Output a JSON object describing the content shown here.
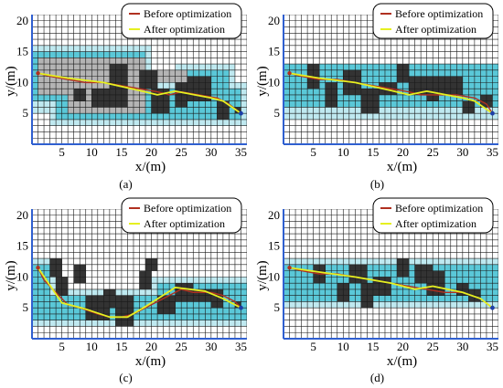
{
  "figure": {
    "legend_before": "Before optimization",
    "legend_after": "After optimization",
    "xlabel": "x/(m)",
    "ylabel": "y/(m)",
    "x_ticks": [
      5,
      10,
      15,
      20,
      25,
      30,
      35
    ],
    "y_ticks": [
      5,
      10,
      15,
      20
    ],
    "xlim": [
      0,
      36
    ],
    "ylim": [
      0,
      21
    ],
    "colors": {
      "grid": "#1a1a1a",
      "axis": "#2f5fd0",
      "obstacle": "#333333",
      "buffer_inner": "#5ac8d8",
      "buffer_outer": "#bfe9f0",
      "explored": "#b4b4b4",
      "before_path": "#b03020",
      "after_path": "#e6f020",
      "endpoint": "#1d3fa8"
    }
  },
  "chart_data": [
    {
      "type": "line",
      "panel_label": "(a)",
      "legend": [
        "Before optimization",
        "After optimization"
      ],
      "xlabel": "x/(m)",
      "ylabel": "y/(m)",
      "xlim": [
        0,
        36
      ],
      "ylim": [
        0,
        21
      ],
      "x_ticks": [
        5,
        10,
        15,
        20,
        25,
        30,
        35
      ],
      "y_ticks": [
        5,
        10,
        15,
        20
      ],
      "grid": true,
      "legend_position": "top-right",
      "obstacles": [
        [
          7,
          7,
          2,
          2
        ],
        [
          10,
          6,
          3,
          3
        ],
        [
          13,
          6,
          3,
          7
        ],
        [
          18,
          9,
          3,
          3
        ],
        [
          20,
          5,
          3,
          4
        ],
        [
          24,
          6,
          2,
          4
        ],
        [
          26,
          7,
          4,
          4
        ],
        [
          31,
          4,
          2,
          3
        ],
        [
          34,
          5,
          1,
          1
        ]
      ],
      "explored_regions": [
        [
          1,
          8,
          18,
          6
        ],
        [
          6,
          5,
          13,
          3
        ],
        [
          19,
          10,
          7,
          2
        ]
      ],
      "buffer": {
        "inner": [
          [
            0,
            7,
            19,
            8
          ],
          [
            4,
            4,
            31,
            5
          ],
          [
            25,
            6,
            8,
            6
          ]
        ],
        "outer": [
          [
            0,
            5,
            20,
            11
          ],
          [
            3,
            3,
            33,
            7
          ],
          [
            24,
            4,
            10,
            9
          ]
        ]
      },
      "series": [
        {
          "name": "Before optimization",
          "x": [
            1,
            3,
            6,
            9,
            12,
            15,
            18,
            21,
            23,
            25,
            28,
            31,
            33,
            35
          ],
          "y": [
            11.5,
            11,
            10.5,
            10,
            10,
            9.5,
            9,
            8.5,
            8,
            8.5,
            8,
            7.5,
            6.5,
            5
          ]
        },
        {
          "name": "After optimization",
          "x": [
            1,
            6,
            12,
            18,
            21,
            24,
            30,
            32,
            35
          ],
          "y": [
            11.5,
            10.7,
            10,
            8.7,
            8,
            8.6,
            7.5,
            7,
            5
          ]
        }
      ]
    },
    {
      "type": "line",
      "panel_label": "(b)",
      "legend": [
        "Before optimization",
        "After optimization"
      ],
      "xlabel": "x/(m)",
      "ylabel": "y/(m)",
      "xlim": [
        0,
        36
      ],
      "ylim": [
        0,
        21
      ],
      "x_ticks": [
        5,
        10,
        15,
        20,
        25,
        30,
        35
      ],
      "y_ticks": [
        5,
        10,
        15,
        20
      ],
      "grid": true,
      "legend_position": "top-right",
      "obstacles": [
        [
          4,
          9,
          2,
          4
        ],
        [
          7,
          6,
          2,
          4
        ],
        [
          10,
          8,
          3,
          4
        ],
        [
          13,
          5,
          3,
          4
        ],
        [
          16,
          8,
          3,
          2
        ],
        [
          19,
          10,
          2,
          3
        ],
        [
          21,
          8,
          3,
          3
        ],
        [
          24,
          7,
          2,
          4
        ],
        [
          26,
          8,
          4,
          3
        ],
        [
          30,
          5,
          2,
          2
        ],
        [
          33,
          6,
          2,
          2
        ]
      ],
      "explored_regions": [],
      "buffer": {
        "inner": [
          [
            0,
            6,
            36,
            7
          ]
        ],
        "outer": [
          [
            0,
            4,
            36,
            9
          ]
        ]
      },
      "series": [
        {
          "name": "Before optimization",
          "x": [
            1,
            3,
            6,
            9,
            12,
            15,
            18,
            21,
            23,
            26,
            29,
            32,
            34,
            35
          ],
          "y": [
            11.5,
            11,
            10.5,
            10.5,
            10,
            9.5,
            9,
            8.5,
            8,
            8,
            8,
            7.5,
            6.5,
            5
          ]
        },
        {
          "name": "After optimization",
          "x": [
            1,
            6,
            12,
            18,
            21,
            24,
            30,
            32,
            35
          ],
          "y": [
            11.5,
            10.7,
            10,
            8.7,
            8,
            8.6,
            7.5,
            7,
            5
          ]
        }
      ]
    },
    {
      "type": "line",
      "panel_label": "(c)",
      "legend": [
        "Before optimization",
        "After optimization"
      ],
      "xlabel": "x/(m)",
      "ylabel": "y/(m)",
      "xlim": [
        0,
        36
      ],
      "ylim": [
        0,
        21
      ],
      "x_ticks": [
        5,
        10,
        15,
        20,
        25,
        30,
        35
      ],
      "y_ticks": [
        5,
        10,
        15,
        20
      ],
      "grid": true,
      "legend_position": "top-right",
      "obstacles": [
        [
          3,
          10,
          2,
          3
        ],
        [
          4,
          7,
          2,
          3
        ],
        [
          7,
          9,
          2,
          3
        ],
        [
          9,
          3,
          4,
          4
        ],
        [
          12,
          5,
          2,
          3
        ],
        [
          14,
          2,
          3,
          5
        ],
        [
          18,
          8,
          2,
          3
        ],
        [
          19,
          11,
          2,
          2
        ],
        [
          21,
          4,
          3,
          3
        ],
        [
          24,
          6,
          3,
          3
        ],
        [
          27,
          6,
          3,
          2
        ],
        [
          30,
          5,
          2,
          3
        ],
        [
          34,
          5,
          1,
          1
        ]
      ],
      "explored_regions": [],
      "buffer": {
        "inner": [
          [
            0,
            3,
            36,
            4
          ],
          [
            0,
            7,
            3,
            5
          ],
          [
            21,
            6,
            15,
            3
          ]
        ],
        "outer": [
          [
            0,
            2,
            36,
            6
          ],
          [
            0,
            6,
            4,
            7
          ],
          [
            20,
            5,
            16,
            5
          ]
        ]
      },
      "series": [
        {
          "name": "Before optimization",
          "x": [
            1,
            2,
            4,
            6,
            8,
            11,
            13,
            15,
            17,
            19,
            21,
            23,
            25,
            27,
            30,
            32,
            34,
            35
          ],
          "y": [
            11.5,
            9.5,
            7.5,
            5.5,
            5,
            4,
            3.5,
            3.5,
            4,
            5,
            6,
            7,
            8,
            7.5,
            7.5,
            7,
            6,
            5
          ]
        },
        {
          "name": "After optimization",
          "x": [
            1,
            5,
            9,
            13,
            16,
            19,
            24,
            29,
            32,
            35
          ],
          "y": [
            11.5,
            5.8,
            4.8,
            3.5,
            3.5,
            5.2,
            8.3,
            7.7,
            6.5,
            5
          ]
        }
      ]
    },
    {
      "type": "line",
      "panel_label": "(d)",
      "legend": [
        "Before optimization",
        "After optimization"
      ],
      "xlabel": "x/(m)",
      "ylabel": "y/(m)",
      "xlim": [
        0,
        36
      ],
      "ylim": [
        0,
        21
      ],
      "x_ticks": [
        5,
        10,
        15,
        20,
        25,
        30,
        35
      ],
      "y_ticks": [
        5,
        10,
        15,
        20
      ],
      "grid": true,
      "legend_position": "top-right",
      "obstacles": [
        [
          5,
          9,
          2,
          3
        ],
        [
          9,
          6,
          2,
          3
        ],
        [
          11,
          9,
          3,
          3
        ],
        [
          13,
          5,
          2,
          4
        ],
        [
          15,
          7,
          3,
          3
        ],
        [
          19,
          10,
          2,
          3
        ],
        [
          22,
          9,
          3,
          3
        ],
        [
          24,
          7,
          3,
          4
        ],
        [
          29,
          7,
          2,
          2
        ],
        [
          31,
          6,
          2,
          2
        ]
      ],
      "explored_regions": [],
      "buffer": {
        "inner": [
          [
            0,
            6,
            36,
            6
          ]
        ],
        "outer": [
          [
            0,
            5,
            36,
            8
          ]
        ]
      },
      "series": [
        {
          "name": "Before optimization",
          "x": [
            1,
            3,
            6,
            9,
            12,
            15,
            18,
            21,
            24,
            27,
            30,
            33,
            35
          ],
          "y": [
            11.5,
            11,
            10.5,
            10.5,
            10,
            9.5,
            9,
            8.5,
            8,
            7.5,
            7.5,
            6.5,
            5
          ]
        },
        {
          "name": "After optimization",
          "x": [
            1,
            6,
            12,
            18,
            22,
            25,
            30,
            33,
            35
          ],
          "y": [
            11.5,
            10.8,
            10,
            9,
            8,
            8.5,
            7.5,
            6.5,
            5
          ]
        }
      ]
    }
  ]
}
